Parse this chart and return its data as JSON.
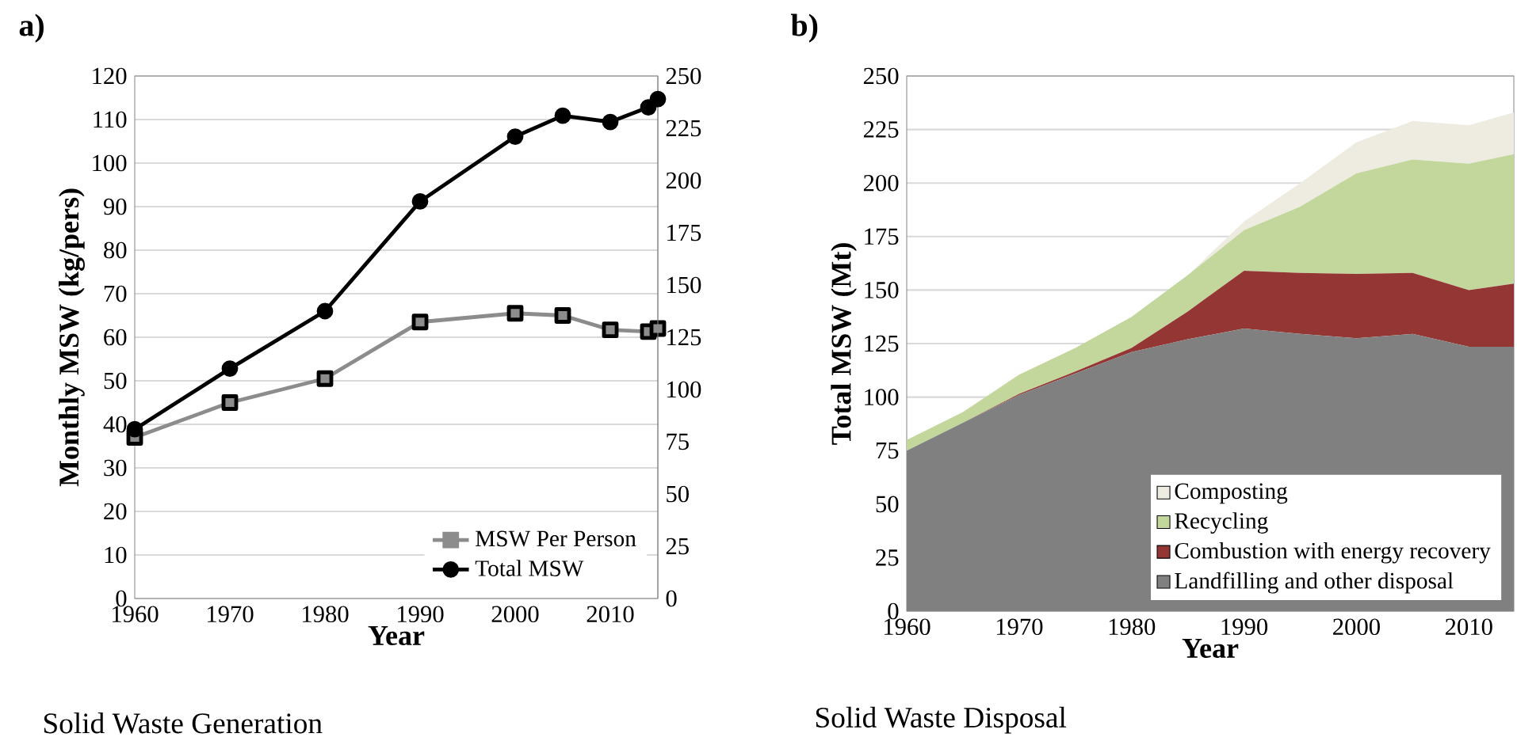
{
  "chart_data": [
    {
      "type": "line",
      "title": "a)",
      "xlabel": "Year",
      "ylabel": "Monthly MSW (kg/pers)",
      "annotations": [
        "Solid Waste Generation"
      ],
      "xlim": [
        1960,
        2015
      ],
      "xticks": [
        1960,
        1970,
        1980,
        1990,
        2000,
        2010
      ],
      "ylim": [
        0,
        120
      ],
      "yticks": [
        0,
        10,
        20,
        30,
        40,
        50,
        60,
        70,
        80,
        90,
        100,
        110,
        120
      ],
      "y2lim": [
        0,
        250
      ],
      "y2ticks": [
        0,
        25,
        50,
        75,
        100,
        125,
        150,
        175,
        200,
        225,
        250
      ],
      "grid": "y",
      "legend": "bottom right",
      "line_style": "solid",
      "x": [
        1960,
        1970,
        1980,
        1990,
        2000,
        2005,
        2010,
        2014,
        2015
      ],
      "series": [
        {
          "name": "MSW Per Person",
          "color": "#8c8c8c",
          "marker": "square",
          "values": [
            37,
            45,
            50.5,
            63.5,
            65.5,
            65,
            61.7,
            61.3,
            62
          ]
        },
        {
          "name": "Total MSW",
          "color": "#000000",
          "marker": "circle",
          "axis": "y2",
          "values": [
            81,
            110,
            137.5,
            190,
            221,
            231,
            228,
            235,
            239
          ]
        }
      ]
    },
    {
      "type": "area",
      "stacked": true,
      "title": "b)",
      "xlabel": "Year",
      "ylabel": "Total MSW (Mt)",
      "annotations": [
        "Solid Waste Disposal"
      ],
      "xlim": [
        1960,
        2014
      ],
      "xticks": [
        1960,
        1970,
        1980,
        1990,
        2000,
        2010
      ],
      "ylim": [
        0,
        250
      ],
      "yticks": [
        0,
        25,
        50,
        75,
        100,
        125,
        150,
        175,
        200,
        225,
        250
      ],
      "grid": "y",
      "legend": "bottom right",
      "x": [
        1960,
        1965,
        1970,
        1975,
        1980,
        1985,
        1990,
        1995,
        2000,
        2005,
        2010,
        2014
      ],
      "series": [
        {
          "name": "Landfilling and other disposal",
          "color": "#808080",
          "values": [
            75,
            88,
            101,
            111,
            121,
            127,
            132,
            129.5,
            127.5,
            129.5,
            123.5,
            123.5
          ]
        },
        {
          "name": "Combustion with energy recovery",
          "color": "#943634",
          "values": [
            0,
            0,
            0.5,
            1,
            2,
            13,
            27,
            28.5,
            30,
            28.5,
            26.5,
            29.5
          ]
        },
        {
          "name": "Recycling",
          "color": "#c3d69b",
          "values": [
            5,
            5,
            9,
            11,
            14.5,
            17,
            19,
            31,
            47,
            53,
            59,
            60.5
          ]
        },
        {
          "name": "Composting",
          "color": "#eeece1",
          "values": [
            0,
            0,
            0,
            0,
            0,
            0,
            4,
            11,
            14.5,
            18,
            18,
            19.5
          ]
        }
      ]
    }
  ]
}
